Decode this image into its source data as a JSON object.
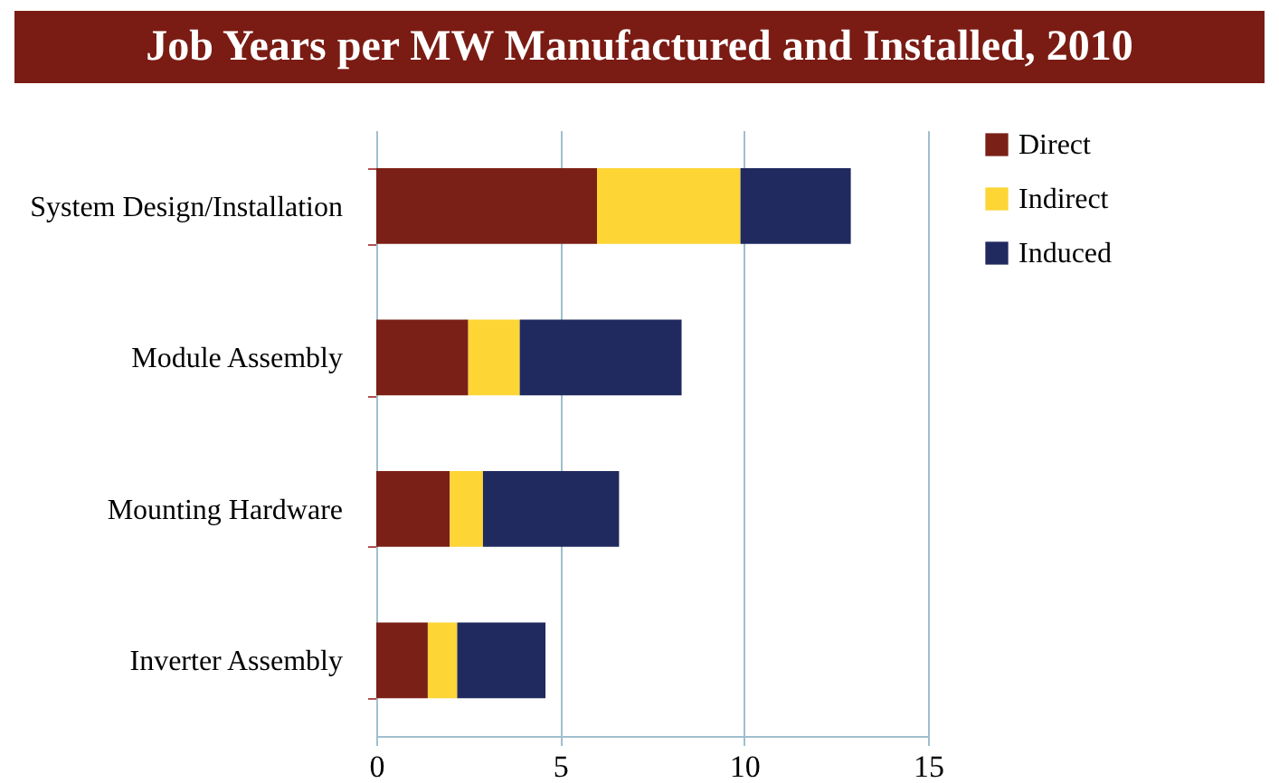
{
  "chart_data": {
    "type": "bar",
    "orientation": "horizontal",
    "stacked": true,
    "title": "Job Years per MW Manufactured and Installed, 2010",
    "categories": [
      "System Design/Installation",
      "Module Assembly",
      "Mounting Hardware",
      "Inverter Assembly"
    ],
    "series": [
      {
        "name": "Direct",
        "color": "#7b2016",
        "values": [
          6.0,
          2.5,
          2.0,
          1.4
        ]
      },
      {
        "name": "Indirect",
        "color": "#fdd535",
        "values": [
          3.9,
          1.4,
          0.9,
          0.8
        ]
      },
      {
        "name": "Induced",
        "color": "#202a5f",
        "values": [
          3.0,
          4.4,
          3.7,
          2.4
        ]
      }
    ],
    "xlim": [
      0,
      15
    ],
    "xticks": [
      0,
      5,
      10,
      15
    ],
    "grid": "x",
    "legend": "right"
  }
}
